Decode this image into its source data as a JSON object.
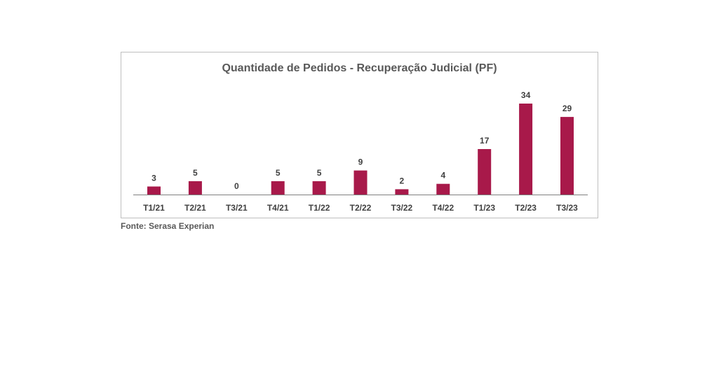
{
  "chart_data": {
    "type": "bar",
    "title": "Quantidade de Pedidos - Recuperação Judicial (PF)",
    "xlabel": "",
    "ylabel": "",
    "categories": [
      "T1/21",
      "T2/21",
      "T3/21",
      "T4/21",
      "T1/22",
      "T2/22",
      "T3/22",
      "T4/22",
      "T1/23",
      "T2/23",
      "T3/23"
    ],
    "values": [
      3,
      5,
      0,
      5,
      5,
      9,
      2,
      4,
      17,
      34,
      29
    ],
    "ylim": [
      0,
      34
    ],
    "grid": false,
    "data_labels": true,
    "bar_color": "#a8194a",
    "axis_color": "#808080"
  },
  "source": "Fonte: Serasa Experian"
}
